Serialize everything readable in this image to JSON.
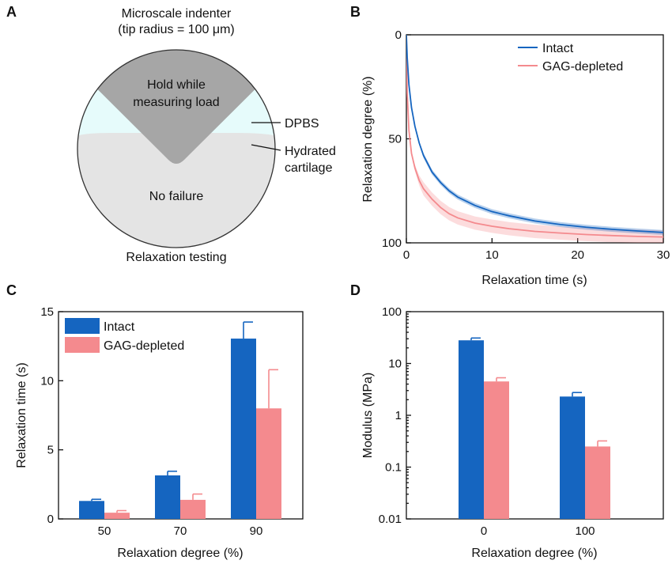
{
  "colors": {
    "intact": "#1565c0",
    "gag": "#f48a8e",
    "indenter": "#a6a6a6",
    "cartilage": "#e4e4e4",
    "dpbs": "#e6fbfb"
  },
  "panel_a": {
    "label": "A",
    "indenter_title_1": "Microscale indenter",
    "indenter_title_2": "(tip radius = 100 μm)",
    "hold_1": "Hold while",
    "hold_2": "measuring load",
    "dpbs": "DPBS",
    "cartilage_1": "Hydrated",
    "cartilage_2": "cartilage",
    "no_failure": "No failure",
    "caption": "Relaxation testing"
  },
  "chart_data": [
    {
      "panel": "B",
      "type": "line",
      "xlabel": "Relaxation time (s)",
      "ylabel": "Relaxation degree (%)",
      "xlim": [
        0,
        30
      ],
      "ylim": [
        0,
        100
      ],
      "y_inverted": true,
      "xticks": [
        "0",
        "10",
        "20",
        "30"
      ],
      "yticks": [
        "0",
        "50",
        "100"
      ],
      "legend": "top-right",
      "x": [
        0,
        0.1,
        0.3,
        0.6,
        1,
        1.5,
        2,
        3,
        4,
        5,
        6,
        8,
        10,
        12,
        15,
        18,
        21,
        24,
        27,
        30
      ],
      "series": [
        {
          "name": "Intact",
          "values": [
            0,
            11,
            24,
            35,
            44,
            52,
            58,
            66,
            71,
            75,
            78,
            82,
            85,
            87,
            89.5,
            91.2,
            92.5,
            93.5,
            94.3,
            95
          ]
        },
        {
          "name": "GAG-depleted",
          "values": [
            0,
            28,
            46,
            57,
            64,
            70,
            74,
            79,
            83,
            86,
            88,
            90.5,
            92,
            93.2,
            94.5,
            95.3,
            96,
            96.5,
            96.9,
            97.2
          ]
        }
      ]
    },
    {
      "panel": "C",
      "type": "bar",
      "xlabel": "Relaxation degree (%)",
      "ylabel": "Relaxation time (s)",
      "ylim": [
        0,
        15
      ],
      "yticks": [
        "0",
        "5",
        "10",
        "15"
      ],
      "categories": [
        "50",
        "70",
        "90"
      ],
      "legend": "top-left",
      "series": [
        {
          "name": "Intact",
          "values": [
            1.3,
            3.15,
            13.05
          ],
          "errors": [
            0.12,
            0.3,
            1.2
          ]
        },
        {
          "name": "GAG-depleted",
          "values": [
            0.45,
            1.38,
            8.0
          ],
          "errors": [
            0.15,
            0.42,
            2.8
          ]
        }
      ]
    },
    {
      "panel": "D",
      "type": "bar",
      "xlabel": "Relaxation degree (%)",
      "ylabel": "Modulus (MPa)",
      "yscale": "log",
      "ylim": [
        0.01,
        100
      ],
      "yticks": [
        "0.01",
        "0.1",
        "1",
        "10",
        "100"
      ],
      "categories": [
        "0",
        "100"
      ],
      "series": [
        {
          "name": "Intact",
          "values": [
            28,
            2.3
          ],
          "errors": [
            3,
            0.45
          ]
        },
        {
          "name": "GAG-depleted",
          "values": [
            4.5,
            0.25
          ],
          "errors": [
            0.8,
            0.07
          ]
        }
      ]
    }
  ]
}
